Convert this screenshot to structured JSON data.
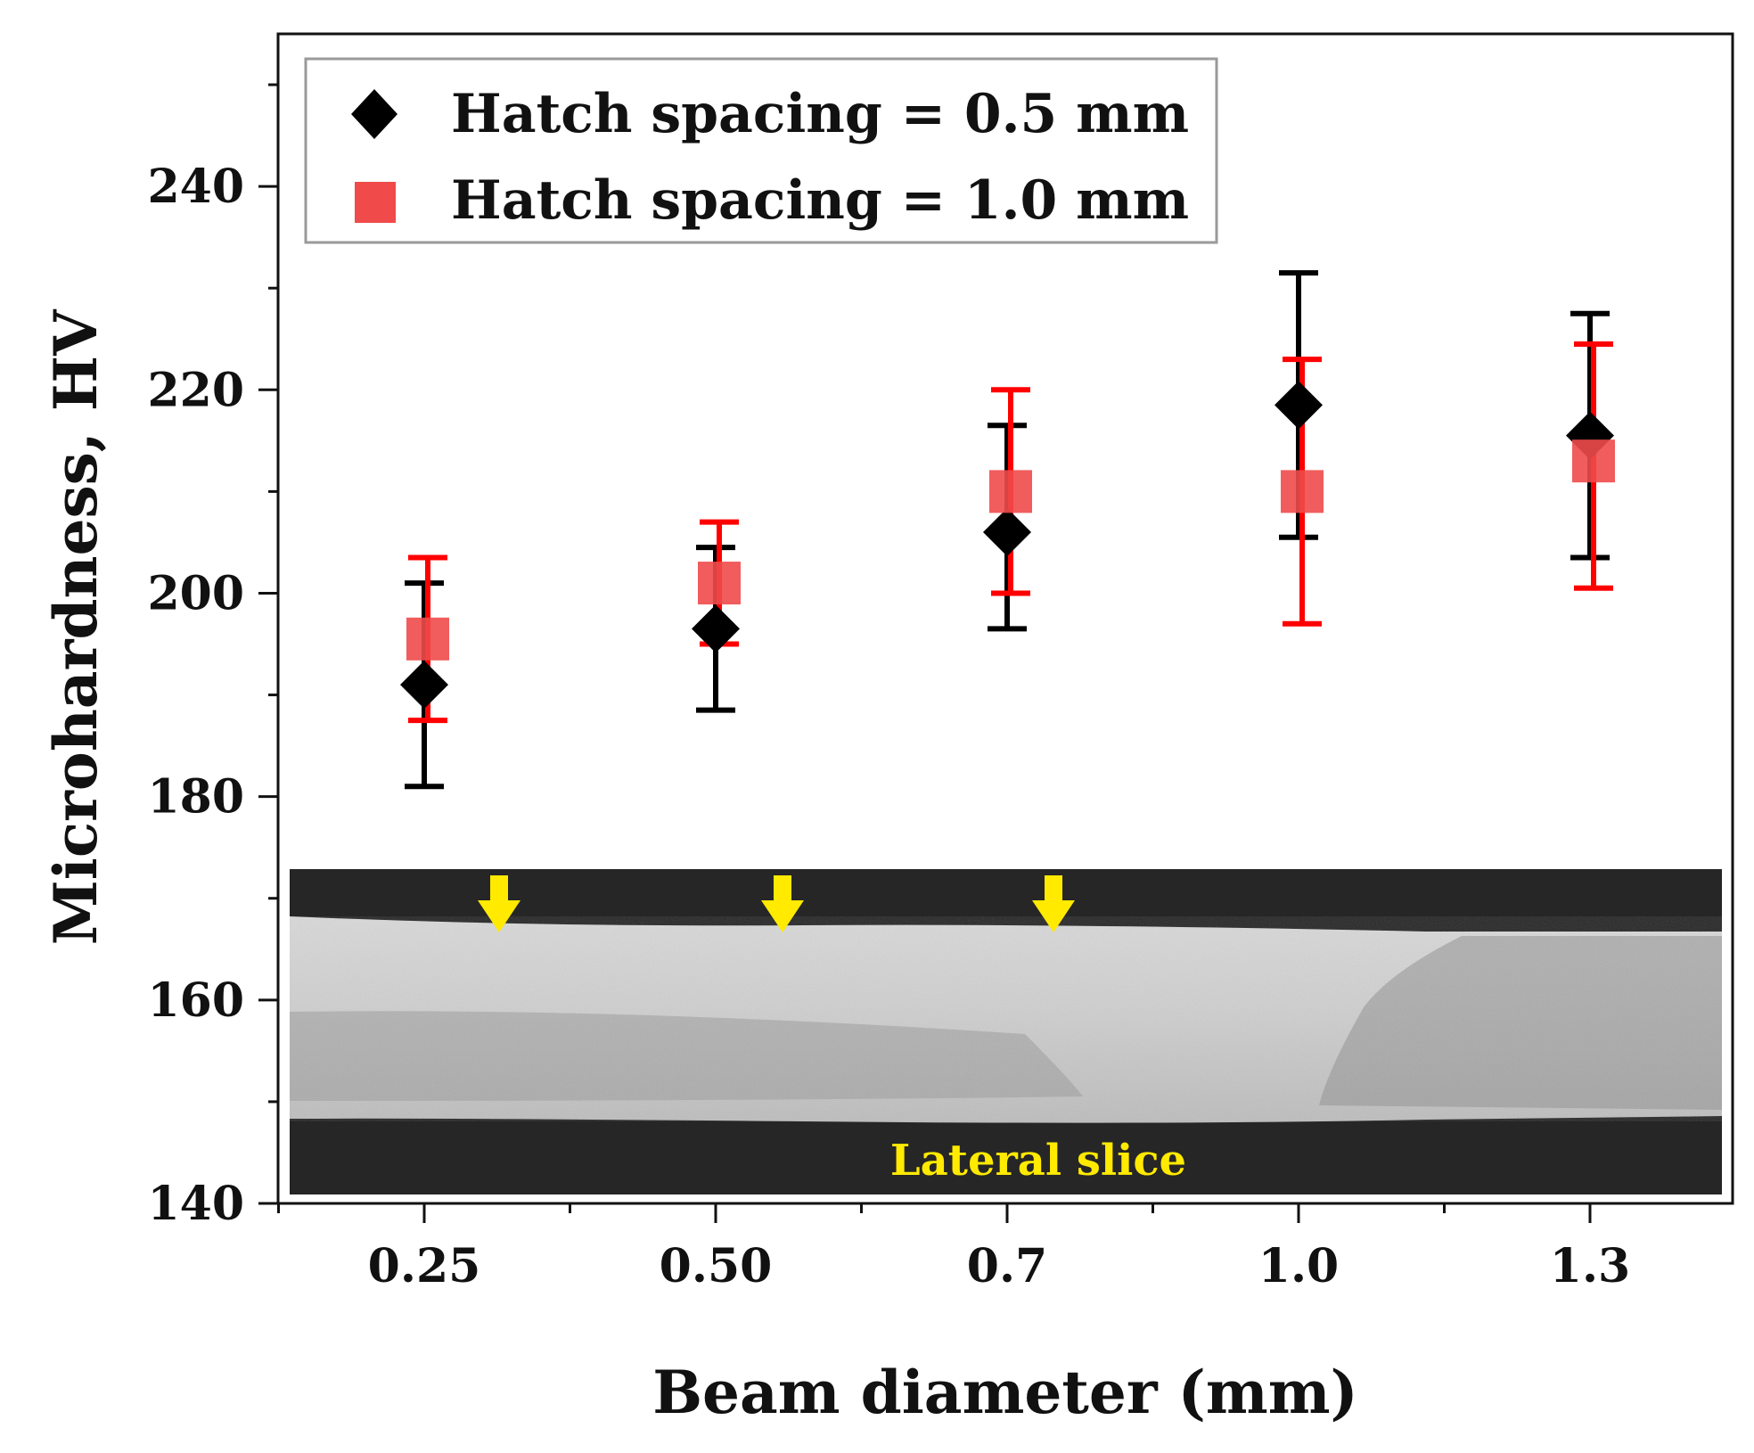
{
  "chart_data": {
    "type": "scatter",
    "xlabel": "Beam diameter (mm)",
    "ylabel": "Microhardness, HV",
    "categories": [
      "0.25",
      "0.50",
      "0.7",
      "1.0",
      "1.3"
    ],
    "ylim": [
      140,
      255
    ],
    "yticks": [
      140,
      160,
      180,
      200,
      220,
      240
    ],
    "series": [
      {
        "name": "Hatch spacing = 0.5 mm",
        "marker": "diamond",
        "color": "#000000",
        "errorbar_color": "#000000",
        "values": [
          191,
          196.5,
          206,
          218.5,
          215.5
        ],
        "err_low": [
          181,
          188.5,
          196.5,
          205.5,
          203.5
        ],
        "err_high": [
          201,
          204.5,
          216.5,
          231.5,
          227.5
        ]
      },
      {
        "name": "Hatch spacing = 1.0 mm",
        "marker": "square",
        "color": "#f04a4a",
        "errorbar_color": "#ff0000",
        "values": [
          195.5,
          201,
          210,
          210,
          213
        ],
        "err_low": [
          187.5,
          195,
          200,
          197,
          200.5
        ],
        "err_high": [
          203.5,
          207,
          220,
          223,
          224.5
        ]
      }
    ],
    "legend_position": "top-left",
    "inset": {
      "label": "Lateral slice",
      "description_color": "#ffea00"
    }
  }
}
